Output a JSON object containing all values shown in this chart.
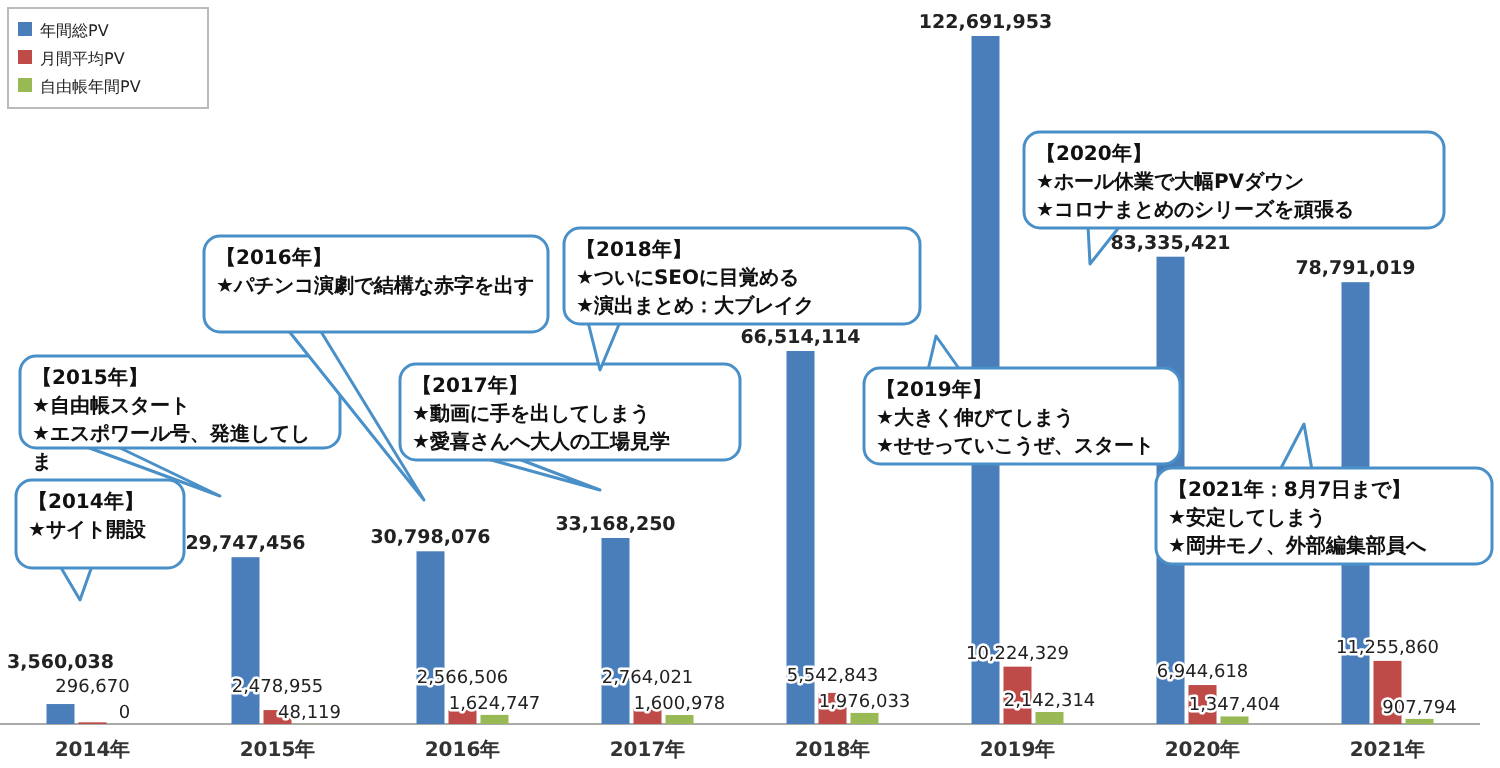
{
  "chart_data": {
    "type": "bar",
    "relative": false,
    "legend": "top left",
    "categories": [
      "2014年",
      "2015年",
      "2016年",
      "2017年",
      "2018年",
      "2019年",
      "2020年",
      "2021年"
    ],
    "series": [
      {
        "name": "年間総PV",
        "color": "#4a7ebb",
        "values": [
          3560038,
          29747456,
          30798076,
          33168250,
          66514114,
          122691953,
          83335421,
          78791019
        ],
        "value_labels": [
          "3,560,038",
          "29,747,456",
          "30,798,076",
          "33,168,250",
          "66,514,114",
          "122,691,953",
          "83,335,421",
          "78,791,019"
        ]
      },
      {
        "name": "月間平均PV",
        "color": "#be4b48",
        "values": [
          296670,
          2478955,
          2566506,
          2764021,
          5542843,
          10224329,
          6944618,
          11255860
        ],
        "value_labels": [
          "296,670",
          "2,478,955",
          "2,566,506",
          "2,764,021",
          "5,542,843",
          "10,224,329",
          "6,944,618",
          "11,255,860"
        ]
      },
      {
        "name": "自由帳年間PV",
        "color": "#98b954",
        "values": [
          0,
          48119,
          1624747,
          1600978,
          1976033,
          2142314,
          1347404,
          907794
        ],
        "value_labels": [
          "0",
          "48,119",
          "1,624,747",
          "1,600,978",
          "1,976,033",
          "2,142,314",
          "1,347,404",
          "907,794"
        ]
      }
    ],
    "annotations": [
      "【2014年】\n★サイト開設",
      "【2015年】\n★自由帳スタート\n★エスポワール号、発進してしま",
      "【2016年】\n★パチンコ演劇で結構な赤字を出す",
      "【2017年】\n★動画に手を出してしまう\n★愛喜さんへ大人の工場見学",
      "【2018年】\n★ついにSEOに目覚める\n★演出まとめ：大ブレイク",
      "【2019年】\n★大きく伸びてしまう\n★せせっていこうぜ、スタート",
      "【2020年】\n★ホール休業で大幅PVダウン\n★コロナまとめのシリーズを頑張る",
      "【2021年：8月7日まで】\n★安定してしまう\n★岡井モノ、外部編集部員へ"
    ]
  }
}
